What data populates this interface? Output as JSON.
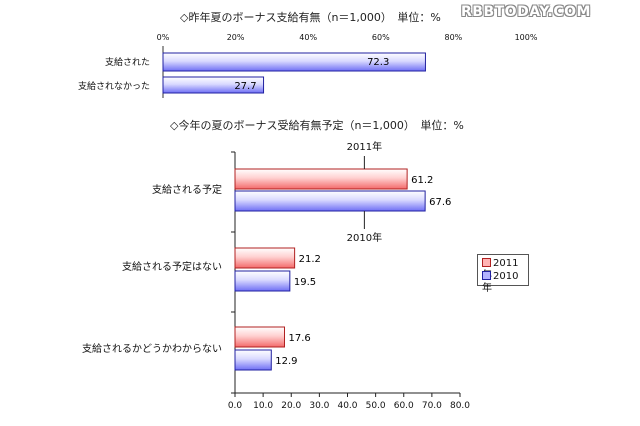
{
  "watermark": "RBBTODAY.COM",
  "chart_data": [
    {
      "type": "bar",
      "orientation": "horizontal",
      "title": "◇昨年夏のボーナス支給有無（n＝1,000）　単位：%",
      "categories": [
        "支給された",
        "支給されなかった"
      ],
      "values": [
        72.3,
        27.7
      ],
      "value_labels": [
        "72.3",
        "27.7"
      ],
      "xlim": [
        0,
        100
      ],
      "xtick_labels": [
        "0%",
        "20%",
        "40%",
        "60%",
        "80%",
        "100%"
      ],
      "colors": {
        "fill_light": "#ffffff",
        "fill_dark": "#7b7bff",
        "stroke": "#2020a0"
      },
      "grid": false
    },
    {
      "type": "bar",
      "orientation": "horizontal",
      "title": "◇今年の夏のボーナス受給有無予定（n＝1,000）　単位：%",
      "categories": [
        "支給される予定",
        "支給される予定はない",
        "支給されるかどうかわからない"
      ],
      "series": [
        {
          "name": "2011年",
          "values": [
            61.2,
            21.2,
            17.6
          ],
          "value_labels": [
            "61.2",
            "21.2",
            "17.6"
          ],
          "color": "#ff7f7f",
          "stroke": "#b02020"
        },
        {
          "name": "2010年",
          "values": [
            67.6,
            19.5,
            12.9
          ],
          "value_labels": [
            "67.6",
            "19.5",
            "12.9"
          ],
          "color": "#8080ff",
          "stroke": "#2020a0"
        }
      ],
      "xlim": [
        0,
        80
      ],
      "xtick_labels": [
        "0.0",
        "10.0",
        "20.0",
        "30.0",
        "40.0",
        "50.0",
        "60.0",
        "70.0",
        "80.0"
      ],
      "annotations": [
        "2011年",
        "2010年"
      ],
      "legend": {
        "placement": "right",
        "entries": [
          "2011年",
          "2010年"
        ]
      },
      "grid": false
    }
  ]
}
